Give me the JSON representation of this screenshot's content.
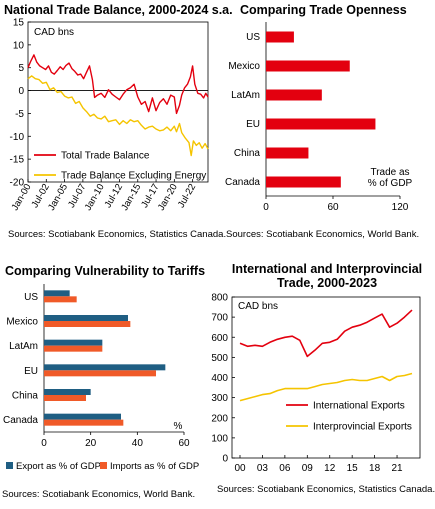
{
  "chart_data": [
    {
      "id": "tb",
      "type": "line",
      "title": "National Trade Balance, 2000-2024 s.a.",
      "unit_label": "CAD bns",
      "ylim": [
        -20,
        15
      ],
      "y_ticks": [
        15,
        10,
        5,
        0,
        -5,
        -10,
        -15,
        -20
      ],
      "x_tick_labels": [
        "Jan-00",
        "Jul-02",
        "Jan-05",
        "Jul-07",
        "Jan-10",
        "Jul-12",
        "Jan-15",
        "Jul-17",
        "Jan-20",
        "Jul-22"
      ],
      "x_tick_years": [
        2000.0,
        2002.5,
        2005.0,
        2007.5,
        2010.0,
        2012.5,
        2015.0,
        2017.5,
        2020.0,
        2022.5
      ],
      "xlim": [
        2000.0,
        2024.6
      ],
      "legend_position": "bottom-left",
      "series": [
        {
          "name": "Total Trade Balance",
          "color": "#e3000f",
          "points": [
            [
              2000.0,
              5.0
            ],
            [
              2000.4,
              6.5
            ],
            [
              2000.8,
              7.8
            ],
            [
              2001.2,
              6.2
            ],
            [
              2001.6,
              5.4
            ],
            [
              2002.0,
              5.0
            ],
            [
              2002.4,
              4.6
            ],
            [
              2002.8,
              5.4
            ],
            [
              2003.2,
              4.0
            ],
            [
              2003.6,
              3.6
            ],
            [
              2004.0,
              4.4
            ],
            [
              2004.4,
              5.2
            ],
            [
              2004.8,
              4.6
            ],
            [
              2005.2,
              5.5
            ],
            [
              2005.6,
              6.0
            ],
            [
              2006.0,
              4.8
            ],
            [
              2006.4,
              4.2
            ],
            [
              2006.8,
              3.4
            ],
            [
              2007.2,
              3.6
            ],
            [
              2007.6,
              2.6
            ],
            [
              2008.0,
              4.0
            ],
            [
              2008.4,
              5.4
            ],
            [
              2008.8,
              2.4
            ],
            [
              2009.1,
              -1.5
            ],
            [
              2009.5,
              -1.0
            ],
            [
              2010.0,
              -0.6
            ],
            [
              2010.5,
              -1.5
            ],
            [
              2011.0,
              0.2
            ],
            [
              2011.5,
              -0.8
            ],
            [
              2012.0,
              -1.4
            ],
            [
              2012.5,
              -2.0
            ],
            [
              2013.0,
              -0.8
            ],
            [
              2013.5,
              0.2
            ],
            [
              2014.0,
              0.6
            ],
            [
              2014.5,
              1.4
            ],
            [
              2015.0,
              -1.4
            ],
            [
              2015.5,
              -3.0
            ],
            [
              2016.0,
              -2.4
            ],
            [
              2016.5,
              -4.6
            ],
            [
              2017.0,
              -1.6
            ],
            [
              2017.5,
              -4.4
            ],
            [
              2018.0,
              -2.6
            ],
            [
              2018.5,
              -1.8
            ],
            [
              2019.0,
              -3.0
            ],
            [
              2019.5,
              -1.0
            ],
            [
              2020.0,
              -1.4
            ],
            [
              2020.3,
              -5.0
            ],
            [
              2020.7,
              -3.2
            ],
            [
              2021.0,
              -1.0
            ],
            [
              2021.4,
              0.6
            ],
            [
              2021.8,
              1.4
            ],
            [
              2022.2,
              3.0
            ],
            [
              2022.5,
              5.4
            ],
            [
              2022.8,
              1.4
            ],
            [
              2023.2,
              -0.6
            ],
            [
              2023.6,
              -0.8
            ],
            [
              2024.0,
              -1.6
            ],
            [
              2024.3,
              -0.6
            ],
            [
              2024.6,
              -1.4
            ]
          ]
        },
        {
          "name": "Trade Balance Excluding Energy",
          "color": "#f5c400",
          "points": [
            [
              2000.0,
              2.6
            ],
            [
              2000.5,
              3.2
            ],
            [
              2001.0,
              2.6
            ],
            [
              2001.5,
              2.4
            ],
            [
              2002.0,
              1.6
            ],
            [
              2002.5,
              1.8
            ],
            [
              2003.0,
              0.2
            ],
            [
              2003.5,
              0.6
            ],
            [
              2004.0,
              -0.4
            ],
            [
              2004.5,
              -0.2
            ],
            [
              2005.0,
              -1.2
            ],
            [
              2005.5,
              -1.6
            ],
            [
              2006.0,
              -1.4
            ],
            [
              2006.5,
              -2.8
            ],
            [
              2007.0,
              -2.4
            ],
            [
              2007.5,
              -3.8
            ],
            [
              2008.0,
              -4.6
            ],
            [
              2008.5,
              -5.6
            ],
            [
              2009.0,
              -5.2
            ],
            [
              2009.5,
              -6.0
            ],
            [
              2010.0,
              -6.2
            ],
            [
              2010.5,
              -5.6
            ],
            [
              2011.0,
              -6.8
            ],
            [
              2011.5,
              -6.6
            ],
            [
              2012.0,
              -6.4
            ],
            [
              2012.5,
              -7.4
            ],
            [
              2013.0,
              -6.6
            ],
            [
              2013.5,
              -7.2
            ],
            [
              2014.0,
              -6.4
            ],
            [
              2014.5,
              -6.8
            ],
            [
              2015.0,
              -6.6
            ],
            [
              2015.5,
              -7.6
            ],
            [
              2016.0,
              -8.4
            ],
            [
              2016.5,
              -8.0
            ],
            [
              2017.0,
              -7.8
            ],
            [
              2017.5,
              -8.4
            ],
            [
              2018.0,
              -8.8
            ],
            [
              2018.5,
              -8.6
            ],
            [
              2019.0,
              -8.0
            ],
            [
              2019.5,
              -8.8
            ],
            [
              2020.0,
              -7.8
            ],
            [
              2020.3,
              -9.0
            ],
            [
              2020.7,
              -7.2
            ],
            [
              2021.0,
              -9.2
            ],
            [
              2021.5,
              -10.4
            ],
            [
              2022.0,
              -11.4
            ],
            [
              2022.3,
              -14.2
            ],
            [
              2022.6,
              -11.0
            ],
            [
              2023.0,
              -12.0
            ],
            [
              2023.4,
              -11.4
            ],
            [
              2023.8,
              -12.6
            ],
            [
              2024.2,
              -11.6
            ],
            [
              2024.6,
              -12.8
            ]
          ]
        }
      ]
    },
    {
      "id": "open",
      "type": "bar",
      "title": "Comparing Trade Openness",
      "categories": [
        "US",
        "Mexico",
        "LatAm",
        "EU",
        "China",
        "Canada"
      ],
      "values": [
        25,
        75,
        50,
        98,
        38,
        67
      ],
      "xlim": [
        0,
        120
      ],
      "x_ticks": [
        0,
        60,
        120
      ],
      "annotation_lines": [
        "Trade as",
        "% of GDP"
      ],
      "color": "#e3000f"
    },
    {
      "id": "vuln",
      "type": "bar",
      "title": "Comparing Vulnerability to Tariffs",
      "categories": [
        "US",
        "Mexico",
        "LatAm",
        "EU",
        "China",
        "Canada"
      ],
      "xlim": [
        0,
        60
      ],
      "x_ticks": [
        0,
        20,
        40,
        60
      ],
      "unit_label": "%",
      "legend_position": "bottom",
      "series": [
        {
          "name": "Export as % of GDP",
          "color": "#1f5e83",
          "values": [
            11,
            36,
            25,
            52,
            20,
            33
          ]
        },
        {
          "name": "Imports as % of GDP",
          "color": "#f05a28",
          "values": [
            14,
            37,
            25,
            48,
            18,
            34
          ]
        }
      ]
    },
    {
      "id": "intl",
      "type": "line",
      "title": "International and Interprovincial Trade, 2000-2023",
      "unit_label": "CAD bns",
      "ylim": [
        0,
        800
      ],
      "y_ticks": [
        800,
        700,
        600,
        500,
        400,
        300,
        200,
        100,
        0
      ],
      "x": [
        2000,
        2001,
        2002,
        2003,
        2004,
        2005,
        2006,
        2007,
        2008,
        2009,
        2010,
        2011,
        2012,
        2013,
        2014,
        2015,
        2016,
        2017,
        2018,
        2019,
        2020,
        2021,
        2022,
        2023
      ],
      "x_tick_labels": [
        "00",
        "03",
        "06",
        "09",
        "12",
        "15",
        "18",
        "21"
      ],
      "x_tick_years": [
        2000,
        2003,
        2006,
        2009,
        2012,
        2015,
        2018,
        2021
      ],
      "xlim": [
        2000,
        2023
      ],
      "legend_position": "bottom",
      "series": [
        {
          "name": "International Exports",
          "color": "#e3000f",
          "values": [
            570,
            555,
            560,
            555,
            575,
            590,
            600,
            605,
            585,
            505,
            535,
            570,
            575,
            590,
            630,
            650,
            660,
            675,
            695,
            715,
            650,
            670,
            700,
            735
          ]
        },
        {
          "name": "Interprovincial Exports",
          "color": "#f5c400",
          "values": [
            285,
            295,
            305,
            315,
            320,
            335,
            345,
            345,
            345,
            345,
            355,
            365,
            370,
            375,
            385,
            390,
            385,
            385,
            395,
            405,
            385,
            405,
            410,
            420
          ]
        }
      ]
    }
  ],
  "sources": [
    "Sources: Scotiabank Economics, Statistics Canada.",
    "Sources: Scotiabank Economics, World Bank.",
    "Sources: Scotiabank Economics, World Bank.",
    "Sources: Scotiabank Economics, Statistics Canada."
  ]
}
